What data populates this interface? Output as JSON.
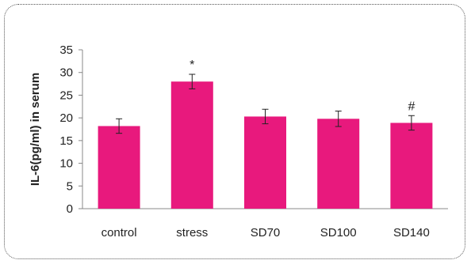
{
  "chart_data": {
    "type": "bar",
    "ylabel": "IL-6(pg/ml) in serum",
    "xlabel": "",
    "title": "",
    "ylim": [
      0,
      35
    ],
    "yticks": [
      0,
      5,
      10,
      15,
      20,
      25,
      30,
      35
    ],
    "categories": [
      "control",
      "stress",
      "SD70",
      "SD100",
      "SD140"
    ],
    "values": [
      18.2,
      28.0,
      20.3,
      19.8,
      18.9
    ],
    "errors": [
      1.6,
      1.6,
      1.6,
      1.7,
      1.6
    ],
    "annotations": [
      "",
      "*",
      "",
      "",
      "#"
    ],
    "bar_color": "#e8197d",
    "grid": false,
    "legend": "none"
  }
}
